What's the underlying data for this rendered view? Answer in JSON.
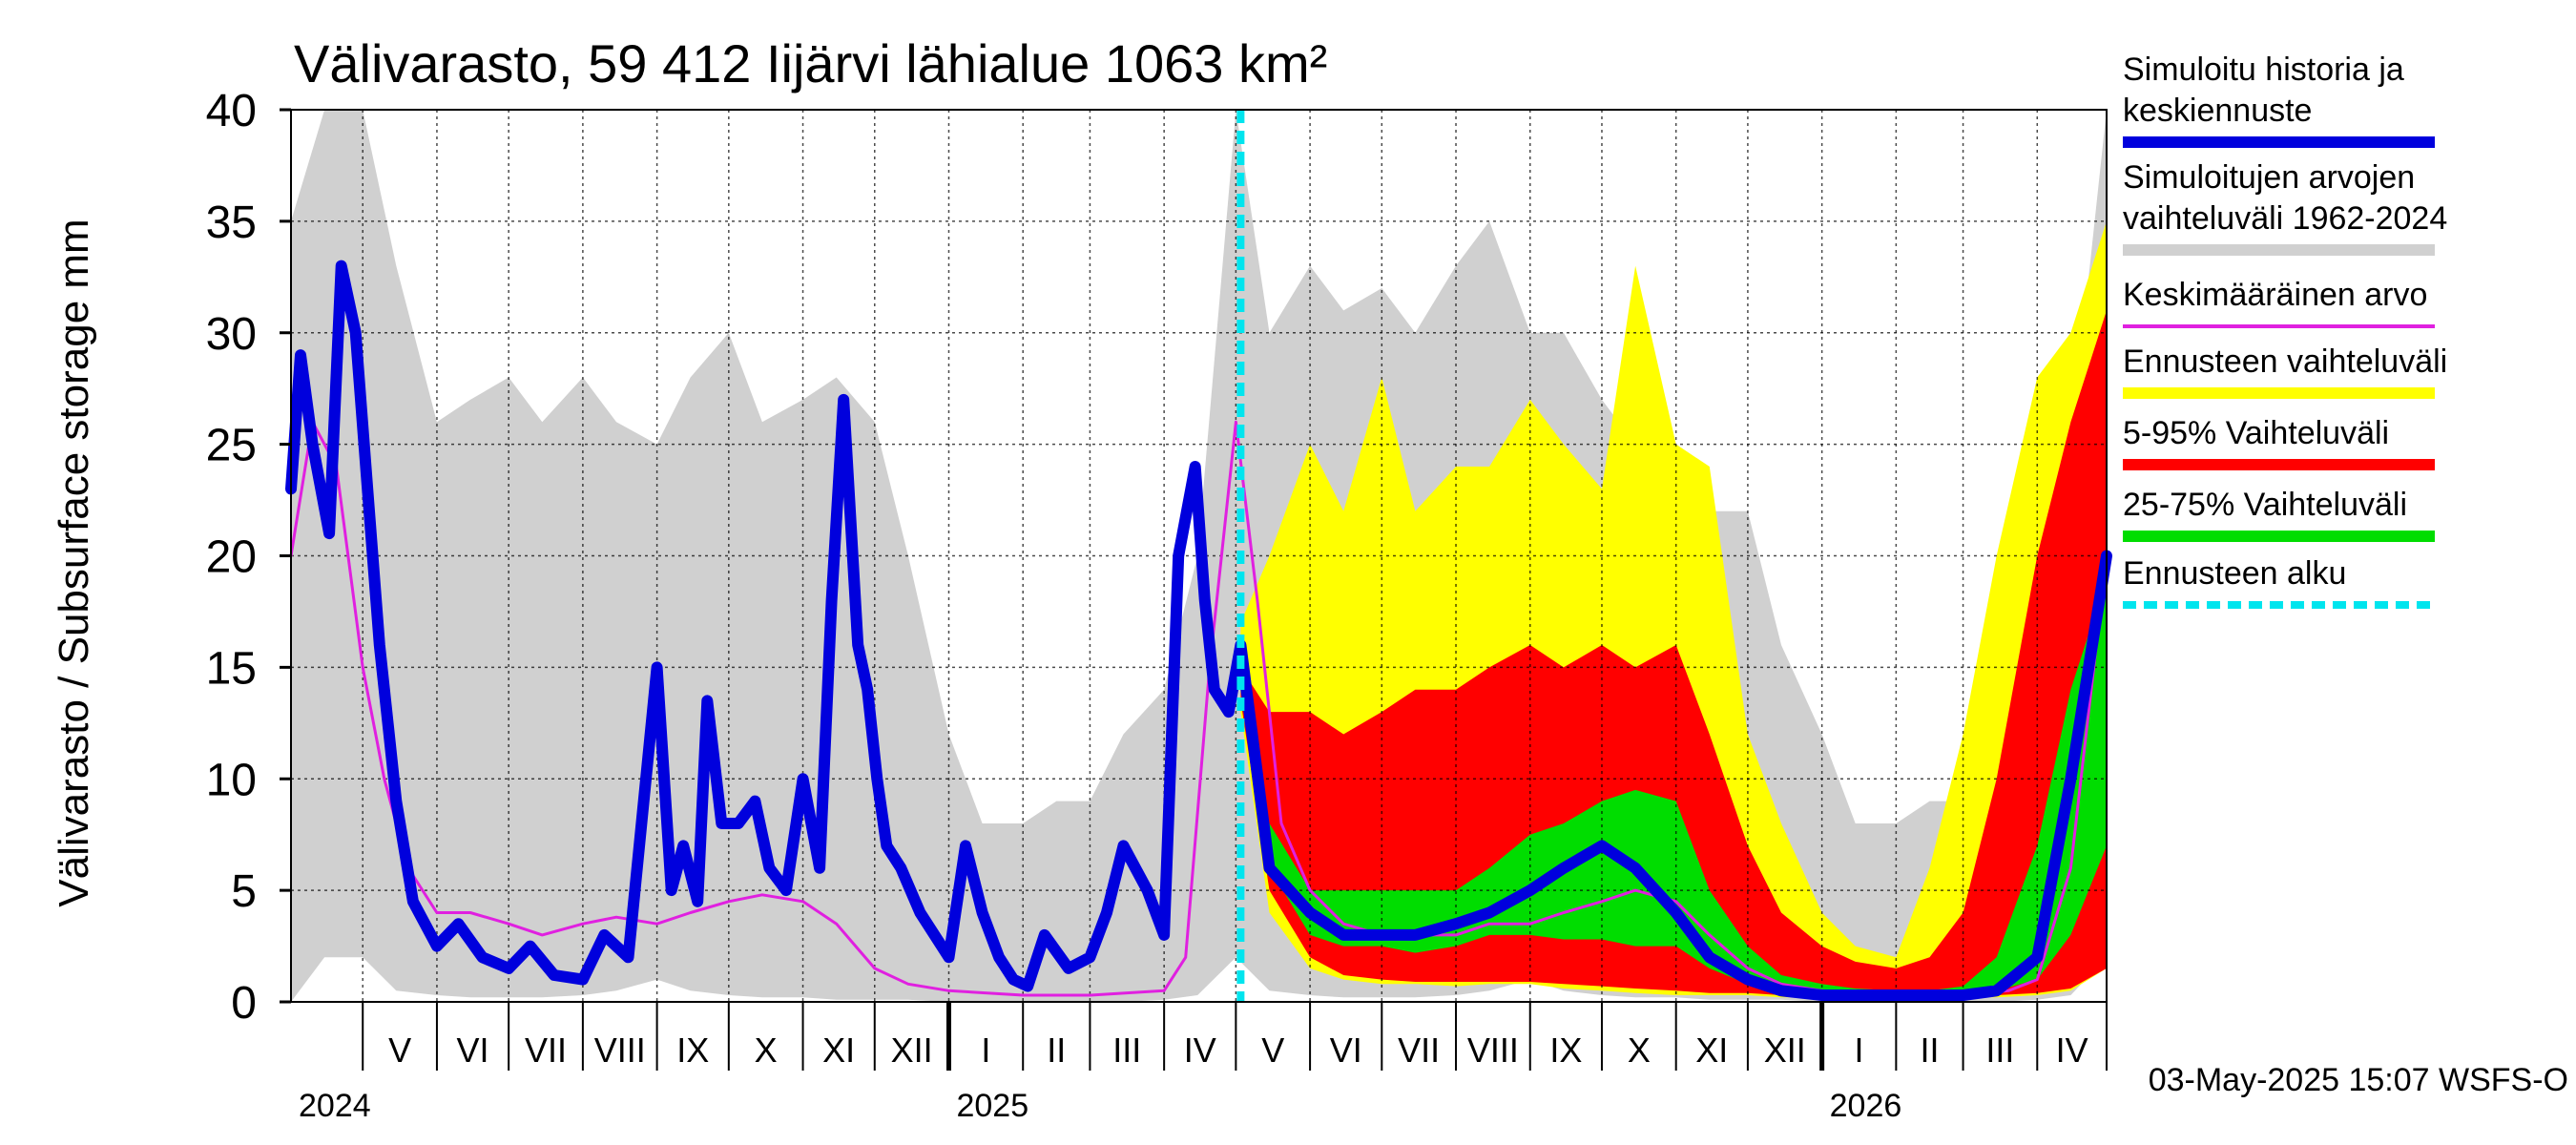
{
  "chart_data": {
    "type": "area",
    "title": "Välivarasto, 59 412 Iijärvi lähialue 1063 km²",
    "ylabel": "Välivarasto / Subsurface storage  mm",
    "ylim": [
      0,
      40
    ],
    "yticks": [
      0,
      5,
      10,
      15,
      20,
      25,
      30,
      35,
      40
    ],
    "ytick_labels": [
      "0",
      "5",
      "10",
      "15",
      "20",
      "25",
      "30",
      "35",
      "40"
    ],
    "grid": true,
    "legend_position": "right",
    "timestamp": "03-May-2025 15:07 WSFS-O",
    "x_start": "2024-04-01",
    "x_end": "2026-04-30",
    "forecast_start": "2025-05-03",
    "months": [
      {
        "label": "V",
        "start": "2024-05-01"
      },
      {
        "label": "VI",
        "start": "2024-06-01"
      },
      {
        "label": "VII",
        "start": "2024-07-01"
      },
      {
        "label": "VIII",
        "start": "2024-08-01"
      },
      {
        "label": "IX",
        "start": "2024-09-01"
      },
      {
        "label": "X",
        "start": "2024-10-01"
      },
      {
        "label": "XI",
        "start": "2024-11-01"
      },
      {
        "label": "XII",
        "start": "2024-12-01"
      },
      {
        "label": "I",
        "start": "2025-01-01"
      },
      {
        "label": "II",
        "start": "2025-02-01"
      },
      {
        "label": "III",
        "start": "2025-03-01"
      },
      {
        "label": "IV",
        "start": "2025-04-01"
      },
      {
        "label": "V",
        "start": "2025-05-01"
      },
      {
        "label": "VI",
        "start": "2025-06-01"
      },
      {
        "label": "VII",
        "start": "2025-07-01"
      },
      {
        "label": "VIII",
        "start": "2025-08-01"
      },
      {
        "label": "IX",
        "start": "2025-09-01"
      },
      {
        "label": "X",
        "start": "2025-10-01"
      },
      {
        "label": "XI",
        "start": "2025-11-01"
      },
      {
        "label": "XII",
        "start": "2025-12-01"
      },
      {
        "label": "I",
        "start": "2026-01-01"
      },
      {
        "label": "II",
        "start": "2026-02-01"
      },
      {
        "label": "III",
        "start": "2026-03-01"
      },
      {
        "label": "IV",
        "start": "2026-04-01"
      }
    ],
    "years": [
      {
        "label": "2024",
        "start": "2024-04-01"
      },
      {
        "label": "2025",
        "start": "2025-01-01"
      },
      {
        "label": "2026",
        "start": "2026-01-01"
      }
    ],
    "legend": [
      {
        "label": "Simuloitu historia ja keskiennuste",
        "color": "#0000dd",
        "kind": "thick"
      },
      {
        "label": "Simuloitujen arvojen vaihteluväli 1962-2024",
        "color": "#d0d0d0",
        "kind": "thick"
      },
      {
        "label": "Keskimääräinen arvo",
        "color": "#e020e0",
        "kind": "thin"
      },
      {
        "label": "Ennusteen vaihteluväli",
        "color": "#ffff00",
        "kind": "thick"
      },
      {
        "label": "5-95% Vaihteluväli",
        "color": "#ff0000",
        "kind": "thick"
      },
      {
        "label": "25-75% Vaihteluväli",
        "color": "#00dd00",
        "kind": "thick"
      },
      {
        "label": "Ennusteen alku",
        "color": "#00e5ee",
        "kind": "dashed"
      }
    ],
    "series": [
      {
        "name": "Simuloitujen arvojen vaihteluväli 1962-2024",
        "kind": "band",
        "color": "#d0d0d0",
        "x": [
          "2024-04-01",
          "2024-04-15",
          "2024-05-01",
          "2024-05-15",
          "2024-06-01",
          "2024-06-15",
          "2024-07-01",
          "2024-07-15",
          "2024-08-01",
          "2024-08-15",
          "2024-09-01",
          "2024-09-15",
          "2024-10-01",
          "2024-10-15",
          "2024-11-01",
          "2024-11-15",
          "2024-12-01",
          "2024-12-15",
          "2025-01-01",
          "2025-01-15",
          "2025-02-01",
          "2025-02-15",
          "2025-03-01",
          "2025-03-15",
          "2025-04-01",
          "2025-04-15",
          "2025-05-01",
          "2025-05-15",
          "2025-06-01",
          "2025-06-15",
          "2025-07-01",
          "2025-07-15",
          "2025-08-01",
          "2025-08-15",
          "2025-09-01",
          "2025-09-15",
          "2025-10-01",
          "2025-10-15",
          "2025-11-01",
          "2025-11-15",
          "2025-12-01",
          "2025-12-15",
          "2026-01-01",
          "2026-01-15",
          "2026-02-01",
          "2026-02-15",
          "2026-03-01",
          "2026-03-15",
          "2026-04-01",
          "2026-04-15",
          "2026-04-30"
        ],
        "upper": [
          35,
          40,
          40,
          33,
          26,
          27,
          28,
          26,
          28,
          26,
          25,
          28,
          30,
          26,
          27,
          28,
          26,
          20,
          12,
          8,
          8,
          9,
          9,
          12,
          14,
          20,
          40,
          30,
          33,
          31,
          32,
          30,
          33,
          35,
          30,
          30,
          27,
          25,
          24,
          22,
          22,
          16,
          12,
          8,
          8,
          9,
          9,
          12,
          14,
          25,
          40
        ],
        "lower": [
          0,
          2,
          2,
          0.5,
          0.3,
          0.2,
          0.2,
          0.2,
          0.3,
          0.5,
          1,
          0.5,
          0.3,
          0.2,
          0.2,
          0.1,
          0.1,
          0.1,
          0,
          0,
          0,
          0,
          0,
          0,
          0.1,
          0.3,
          2,
          0.5,
          0.3,
          0.2,
          0.2,
          0.2,
          0.3,
          0.5,
          1,
          0.5,
          0.3,
          0.2,
          0.2,
          0.1,
          0.1,
          0.1,
          0,
          0,
          0,
          0,
          0,
          0,
          0.1,
          0.3,
          2
        ]
      },
      {
        "name": "Ennusteen vaihteluväli",
        "kind": "band",
        "color": "#ffff00",
        "x": [
          "2025-05-03",
          "2025-05-15",
          "2025-06-01",
          "2025-06-15",
          "2025-07-01",
          "2025-07-15",
          "2025-08-01",
          "2025-08-15",
          "2025-09-01",
          "2025-09-15",
          "2025-10-01",
          "2025-10-15",
          "2025-11-01",
          "2025-11-15",
          "2025-12-01",
          "2025-12-15",
          "2026-01-01",
          "2026-01-15",
          "2026-02-01",
          "2026-02-15",
          "2026-03-01",
          "2026-03-15",
          "2026-04-01",
          "2026-04-15",
          "2026-04-30"
        ],
        "upper": [
          17,
          20,
          25,
          22,
          28,
          22,
          24,
          24,
          27,
          25,
          23,
          33,
          25,
          24,
          12,
          8,
          4,
          2.5,
          2,
          6,
          12,
          20,
          28,
          30,
          35
        ],
        "lower": [
          13,
          4,
          1.5,
          1,
          0.8,
          0.8,
          0.7,
          0.8,
          0.8,
          0.6,
          0.5,
          0.4,
          0.3,
          0.3,
          0.3,
          0.2,
          0.2,
          0.2,
          0.2,
          0.2,
          0.2,
          0.2,
          0.3,
          0.5,
          1.5
        ]
      },
      {
        "name": "5-95% Vaihteluväli",
        "kind": "band",
        "color": "#ff0000",
        "x": [
          "2025-05-03",
          "2025-05-15",
          "2025-06-01",
          "2025-06-15",
          "2025-07-01",
          "2025-07-15",
          "2025-08-01",
          "2025-08-15",
          "2025-09-01",
          "2025-09-15",
          "2025-10-01",
          "2025-10-15",
          "2025-11-01",
          "2025-11-15",
          "2025-12-01",
          "2025-12-15",
          "2026-01-01",
          "2026-01-15",
          "2026-02-01",
          "2026-02-15",
          "2026-03-01",
          "2026-03-15",
          "2026-04-01",
          "2026-04-15",
          "2026-04-30"
        ],
        "upper": [
          15,
          13,
          13,
          12,
          13,
          14,
          14,
          15,
          16,
          15,
          16,
          15,
          16,
          12,
          7,
          4,
          2.5,
          1.8,
          1.5,
          2,
          4,
          10,
          20,
          26,
          31
        ],
        "lower": [
          13.5,
          5,
          2,
          1.2,
          1,
          0.9,
          0.9,
          0.9,
          0.9,
          0.8,
          0.7,
          0.6,
          0.5,
          0.4,
          0.4,
          0.3,
          0.3,
          0.3,
          0.3,
          0.3,
          0.3,
          0.3,
          0.4,
          0.6,
          1.5
        ]
      },
      {
        "name": "25-75% Vaihteluväli",
        "kind": "band",
        "color": "#00dd00",
        "x": [
          "2025-05-03",
          "2025-05-15",
          "2025-06-01",
          "2025-06-15",
          "2025-07-01",
          "2025-07-15",
          "2025-08-01",
          "2025-08-15",
          "2025-09-01",
          "2025-09-15",
          "2025-10-01",
          "2025-10-15",
          "2025-11-01",
          "2025-11-15",
          "2025-12-01",
          "2025-12-15",
          "2026-01-01",
          "2026-01-15",
          "2026-02-01",
          "2026-02-15",
          "2026-03-01",
          "2026-03-15",
          "2026-04-01",
          "2026-04-15",
          "2026-04-30"
        ],
        "upper": [
          14.5,
          8,
          5,
          5,
          5,
          5,
          5,
          6,
          7.5,
          8,
          9,
          9.5,
          9,
          5,
          2.5,
          1.2,
          0.8,
          0.6,
          0.5,
          0.5,
          0.7,
          2,
          7,
          14,
          19
        ],
        "lower": [
          14,
          6,
          3,
          2.5,
          2.5,
          2.2,
          2.5,
          3,
          3,
          2.8,
          2.8,
          2.5,
          2.5,
          1.5,
          0.8,
          0.5,
          0.4,
          0.4,
          0.4,
          0.4,
          0.4,
          0.5,
          1,
          3,
          7
        ]
      },
      {
        "name": "Keskimääräinen arvo",
        "kind": "line",
        "color": "#e020e0",
        "width": 3,
        "x": [
          "2024-04-01",
          "2024-04-10",
          "2024-04-20",
          "2024-05-01",
          "2024-05-10",
          "2024-05-20",
          "2024-06-01",
          "2024-06-15",
          "2024-07-01",
          "2024-07-15",
          "2024-08-01",
          "2024-08-15",
          "2024-09-01",
          "2024-09-15",
          "2024-10-01",
          "2024-10-15",
          "2024-11-01",
          "2024-11-15",
          "2024-12-01",
          "2024-12-15",
          "2025-01-01",
          "2025-02-01",
          "2025-03-01",
          "2025-04-01",
          "2025-04-10",
          "2025-04-20",
          "2025-05-01",
          "2025-05-10",
          "2025-05-20",
          "2025-06-01",
          "2025-06-15",
          "2025-07-01",
          "2025-07-15",
          "2025-08-01",
          "2025-08-15",
          "2025-09-01",
          "2025-09-15",
          "2025-10-01",
          "2025-10-15",
          "2025-11-01",
          "2025-11-15",
          "2025-12-01",
          "2025-12-15",
          "2026-01-01",
          "2026-02-01",
          "2026-03-01",
          "2026-03-20",
          "2026-04-01",
          "2026-04-15",
          "2026-04-30"
        ],
        "y": [
          20,
          26,
          24,
          15,
          10,
          6,
          4,
          4,
          3.5,
          3,
          3.5,
          3.8,
          3.5,
          4,
          4.5,
          4.8,
          4.5,
          3.5,
          1.5,
          0.8,
          0.5,
          0.3,
          0.3,
          0.5,
          2,
          15,
          26,
          18,
          8,
          5,
          3.5,
          3,
          3,
          3,
          3.5,
          3.5,
          4,
          4.5,
          5,
          4.5,
          3,
          1.5,
          0.8,
          0.5,
          0.3,
          0.3,
          0.5,
          1,
          6,
          20
        ]
      },
      {
        "name": "Simuloitu historia ja keskiennuste",
        "kind": "line",
        "color": "#0000dd",
        "width": 12,
        "x": [
          "2024-04-01",
          "2024-04-05",
          "2024-04-10",
          "2024-04-17",
          "2024-04-22",
          "2024-04-28",
          "2024-05-03",
          "2024-05-08",
          "2024-05-15",
          "2024-05-22",
          "2024-06-01",
          "2024-06-10",
          "2024-06-20",
          "2024-07-01",
          "2024-07-10",
          "2024-07-20",
          "2024-08-01",
          "2024-08-10",
          "2024-08-20",
          "2024-09-01",
          "2024-09-07",
          "2024-09-12",
          "2024-09-18",
          "2024-09-22",
          "2024-09-28",
          "2024-10-05",
          "2024-10-12",
          "2024-10-18",
          "2024-10-25",
          "2024-11-01",
          "2024-11-08",
          "2024-11-13",
          "2024-11-18",
          "2024-11-24",
          "2024-11-28",
          "2024-12-02",
          "2024-12-06",
          "2024-12-12",
          "2024-12-20",
          "2025-01-01",
          "2025-01-08",
          "2025-01-15",
          "2025-01-22",
          "2025-01-28",
          "2025-02-03",
          "2025-02-10",
          "2025-02-20",
          "2025-03-01",
          "2025-03-08",
          "2025-03-15",
          "2025-03-25",
          "2025-04-01",
          "2025-04-07",
          "2025-04-14",
          "2025-04-18",
          "2025-04-22",
          "2025-04-28",
          "2025-05-03",
          "2025-05-15",
          "2025-06-01",
          "2025-06-15",
          "2025-07-01",
          "2025-07-15",
          "2025-08-01",
          "2025-08-15",
          "2025-09-01",
          "2025-09-15",
          "2025-10-01",
          "2025-10-15",
          "2025-11-01",
          "2025-11-15",
          "2025-12-01",
          "2025-12-15",
          "2026-01-01",
          "2026-02-01",
          "2026-03-01",
          "2026-03-15",
          "2026-04-01",
          "2026-04-15",
          "2026-04-30"
        ],
        "y": [
          23,
          29,
          25,
          21,
          33,
          30,
          23,
          16,
          9,
          4.5,
          2.5,
          3.5,
          2,
          1.5,
          2.5,
          1.2,
          1,
          3,
          2,
          15,
          5,
          7,
          4.5,
          13.5,
          8,
          8,
          9,
          6,
          5,
          10,
          6,
          18,
          27,
          16,
          14,
          10,
          7,
          6,
          4,
          2,
          7,
          4,
          2,
          1,
          0.7,
          3,
          1.5,
          2,
          4,
          7,
          5,
          3,
          20,
          24,
          18,
          14,
          13,
          16,
          6,
          4,
          3,
          3,
          3,
          3.5,
          4,
          5,
          6,
          7,
          6,
          4,
          2,
          1,
          0.5,
          0.3,
          0.3,
          0.3,
          0.5,
          2,
          10,
          20
        ]
      }
    ]
  }
}
